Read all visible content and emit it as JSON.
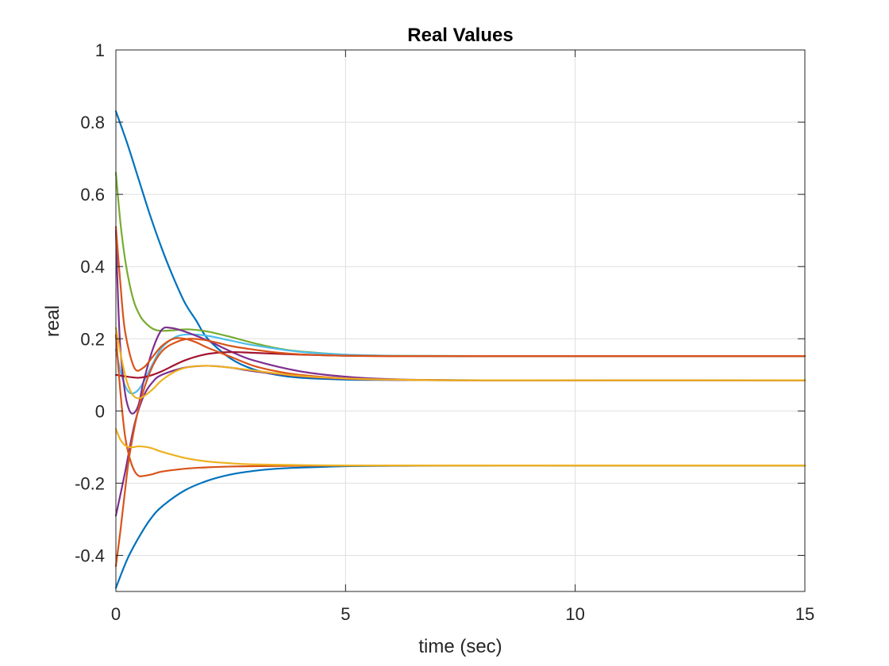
{
  "chart_data": {
    "type": "line",
    "title": "Real Values",
    "xlabel": "time (sec)",
    "ylabel": "real",
    "xlim": [
      0,
      15
    ],
    "ylim": [
      -0.5,
      1.0
    ],
    "xticks": [
      0,
      5,
      10,
      15
    ],
    "xtick_labels": [
      "0",
      "5",
      "10",
      "15"
    ],
    "yticks": [
      -0.4,
      -0.2,
      0,
      0.2,
      0.4,
      0.6,
      0.8,
      1
    ],
    "ytick_labels": [
      "-0.4",
      "-0.2",
      "0",
      "0.2",
      "0.4",
      "0.6",
      "0.8",
      "1"
    ],
    "grid": true,
    "series": [
      {
        "color": "#0072BD",
        "x": [
          0,
          0.25,
          0.5,
          0.75,
          1,
          1.25,
          1.5,
          1.75,
          2,
          2.5,
          3,
          3.5,
          4,
          5,
          6,
          8,
          10,
          15
        ],
        "y": [
          0.83,
          0.74,
          0.64,
          0.54,
          0.45,
          0.37,
          0.3,
          0.25,
          0.2,
          0.145,
          0.115,
          0.1,
          0.092,
          0.087,
          0.086,
          0.085,
          0.085,
          0.085
        ]
      },
      {
        "color": "#0072BD",
        "x": [
          0,
          0.25,
          0.5,
          0.75,
          1,
          1.5,
          2,
          2.5,
          3,
          3.5,
          4,
          5,
          6,
          8,
          10,
          15
        ],
        "y": [
          -0.49,
          -0.41,
          -0.35,
          -0.3,
          -0.265,
          -0.22,
          -0.193,
          -0.176,
          -0.166,
          -0.16,
          -0.157,
          -0.153,
          -0.152,
          -0.151,
          -0.151,
          -0.151
        ]
      },
      {
        "color": "#77AC30",
        "x": [
          0,
          0.1,
          0.2,
          0.3,
          0.4,
          0.5,
          0.6,
          0.8,
          1,
          1.3,
          1.6,
          2,
          2.5,
          3,
          3.5,
          4,
          5,
          6,
          8,
          15
        ],
        "y": [
          0.66,
          0.52,
          0.42,
          0.35,
          0.3,
          0.27,
          0.25,
          0.228,
          0.222,
          0.224,
          0.226,
          0.22,
          0.205,
          0.188,
          0.174,
          0.165,
          0.156,
          0.153,
          0.152,
          0.152
        ]
      },
      {
        "color": "#4DBEEE",
        "x": [
          0,
          0.1,
          0.2,
          0.3,
          0.4,
          0.5,
          0.6,
          0.8,
          1,
          1.3,
          1.6,
          2,
          2.5,
          3,
          4,
          5,
          6,
          8,
          15
        ],
        "y": [
          0.17,
          0.11,
          0.07,
          0.05,
          0.05,
          0.06,
          0.08,
          0.13,
          0.175,
          0.205,
          0.212,
          0.208,
          0.195,
          0.182,
          0.164,
          0.156,
          0.153,
          0.152,
          0.152
        ]
      },
      {
        "color": "#7E2F8E",
        "x": [
          0,
          0.05,
          0.1,
          0.2,
          0.3,
          0.4,
          0.5,
          0.6,
          0.8,
          1,
          1.2,
          1.5,
          2,
          2.5,
          3,
          4,
          5,
          6,
          8,
          15
        ],
        "y": [
          0.5,
          0.3,
          0.17,
          0.05,
          0.0,
          -0.005,
          0.02,
          0.08,
          0.17,
          0.225,
          0.23,
          0.22,
          0.195,
          0.165,
          0.14,
          0.11,
          0.095,
          0.088,
          0.085,
          0.085
        ]
      },
      {
        "color": "#7E2F8E",
        "x": [
          0,
          0.2,
          0.4,
          0.6,
          0.8,
          1,
          1.5,
          2,
          2.5,
          3,
          4,
          5,
          6,
          8,
          15
        ],
        "y": [
          -0.29,
          -0.17,
          -0.04,
          0.04,
          0.08,
          0.1,
          0.12,
          0.125,
          0.12,
          0.11,
          0.096,
          0.089,
          0.086,
          0.085,
          0.085
        ]
      },
      {
        "color": "#A2142F",
        "x": [
          0,
          0.25,
          0.5,
          0.75,
          1,
          1.5,
          2,
          2.5,
          3,
          4,
          5,
          6,
          8,
          15
        ],
        "y": [
          0.1,
          0.095,
          0.092,
          0.098,
          0.11,
          0.14,
          0.158,
          0.163,
          0.161,
          0.156,
          0.153,
          0.152,
          0.152,
          0.152
        ]
      },
      {
        "color": "#D95319",
        "x": [
          0,
          0.1,
          0.2,
          0.3,
          0.5,
          0.75,
          1,
          1.3,
          1.6,
          2,
          2.5,
          3,
          3.5,
          4,
          5,
          6,
          8,
          15
        ],
        "y": [
          -0.43,
          -0.33,
          -0.22,
          -0.12,
          0.01,
          0.11,
          0.165,
          0.19,
          0.2,
          0.195,
          0.18,
          0.17,
          0.162,
          0.157,
          0.153,
          0.152,
          0.152,
          0.152
        ]
      },
      {
        "color": "#D95319",
        "x": [
          0,
          0.1,
          0.2,
          0.3,
          0.4,
          0.5,
          0.6,
          0.8,
          1,
          1.5,
          2,
          2.5,
          3,
          4,
          5,
          6,
          8,
          15
        ],
        "y": [
          0.21,
          0.05,
          -0.07,
          -0.13,
          -0.165,
          -0.18,
          -0.18,
          -0.175,
          -0.168,
          -0.16,
          -0.156,
          -0.154,
          -0.153,
          -0.152,
          -0.151,
          -0.151,
          -0.151,
          -0.151
        ]
      },
      {
        "color": "#D95319",
        "x": [
          0,
          0.1,
          0.2,
          0.4,
          0.6,
          0.8,
          1,
          1.25,
          1.5,
          1.75,
          2,
          2.5,
          3,
          3.5,
          4,
          5,
          6,
          8,
          15
        ],
        "y": [
          0.51,
          0.35,
          0.22,
          0.12,
          0.12,
          0.15,
          0.18,
          0.2,
          0.2,
          0.19,
          0.175,
          0.15,
          0.125,
          0.11,
          0.1,
          0.09,
          0.087,
          0.085,
          0.085
        ]
      },
      {
        "color": "#EDB120",
        "x": [
          0,
          0.1,
          0.2,
          0.3,
          0.4,
          0.5,
          0.6,
          0.8,
          1,
          1.3,
          1.6,
          2,
          2.5,
          3,
          3.5,
          4,
          5,
          6,
          8,
          15
        ],
        "y": [
          0.23,
          0.16,
          0.1,
          0.06,
          0.04,
          0.035,
          0.04,
          0.06,
          0.085,
          0.11,
          0.122,
          0.125,
          0.12,
          0.112,
          0.104,
          0.097,
          0.09,
          0.087,
          0.085,
          0.085
        ]
      },
      {
        "color": "#EDB120",
        "x": [
          0,
          0.1,
          0.2,
          0.3,
          0.4,
          0.5,
          0.75,
          1,
          1.5,
          2,
          2.5,
          3,
          4,
          5,
          6,
          8,
          15
        ],
        "y": [
          -0.05,
          -0.08,
          -0.095,
          -0.1,
          -0.1,
          -0.098,
          -0.102,
          -0.113,
          -0.13,
          -0.14,
          -0.145,
          -0.148,
          -0.15,
          -0.151,
          -0.151,
          -0.151,
          -0.151
        ]
      }
    ]
  }
}
